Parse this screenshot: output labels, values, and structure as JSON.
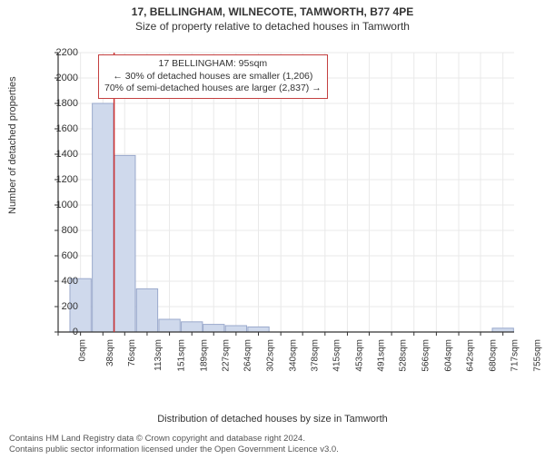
{
  "titles": {
    "main": "17, BELLINGHAM, WILNECOTE, TAMWORTH, B77 4PE",
    "sub": "Size of property relative to detached houses in Tamworth"
  },
  "axes": {
    "ylabel": "Number of detached properties",
    "xlabel": "Distribution of detached houses by size in Tamworth",
    "ylim": [
      0,
      2200
    ],
    "ytick_step": 200,
    "yticks": [
      0,
      200,
      400,
      600,
      800,
      1000,
      1200,
      1400,
      1600,
      1800,
      2000,
      2200
    ],
    "xlim": [
      0,
      774
    ],
    "xticks": [
      0,
      38,
      76,
      113,
      151,
      189,
      227,
      264,
      302,
      340,
      378,
      415,
      453,
      491,
      528,
      566,
      604,
      642,
      680,
      717,
      755
    ],
    "xtick_labels": [
      "0sqm",
      "38sqm",
      "76sqm",
      "113sqm",
      "151sqm",
      "189sqm",
      "227sqm",
      "264sqm",
      "302sqm",
      "340sqm",
      "378sqm",
      "415sqm",
      "453sqm",
      "491sqm",
      "528sqm",
      "566sqm",
      "604sqm",
      "642sqm",
      "680sqm",
      "717sqm",
      "755sqm"
    ]
  },
  "chart": {
    "type": "histogram",
    "bin_centers": [
      38,
      76,
      113,
      151,
      189,
      227,
      264,
      302,
      340,
      755
    ],
    "values": [
      420,
      1800,
      1390,
      340,
      100,
      80,
      60,
      50,
      40,
      30
    ],
    "bar_color": "#cfd9ec",
    "bar_border": "#9aa9cc",
    "bar_width_units": 36,
    "background_color": "#ffffff",
    "grid_color": "#e9e9e9",
    "axis_color": "#333333",
    "marker_line": {
      "x": 95,
      "color": "#cc3333",
      "width": 1.5
    }
  },
  "annotation": {
    "lines": [
      "17 BELLINGHAM: 95sqm",
      "← 30% of detached houses are smaller (1,206)",
      "70% of semi-detached houses are larger (2,837) →"
    ],
    "border_color": "#c44040"
  },
  "footer": {
    "line1": "Contains HM Land Registry data © Crown copyright and database right 2024.",
    "line2": "Contains public sector information licensed under the Open Government Licence v3.0."
  },
  "fonts": {
    "title_size": 12,
    "label_size": 11,
    "tick_size": 10,
    "anno_size": 10.5,
    "footer_size": 9.5
  }
}
